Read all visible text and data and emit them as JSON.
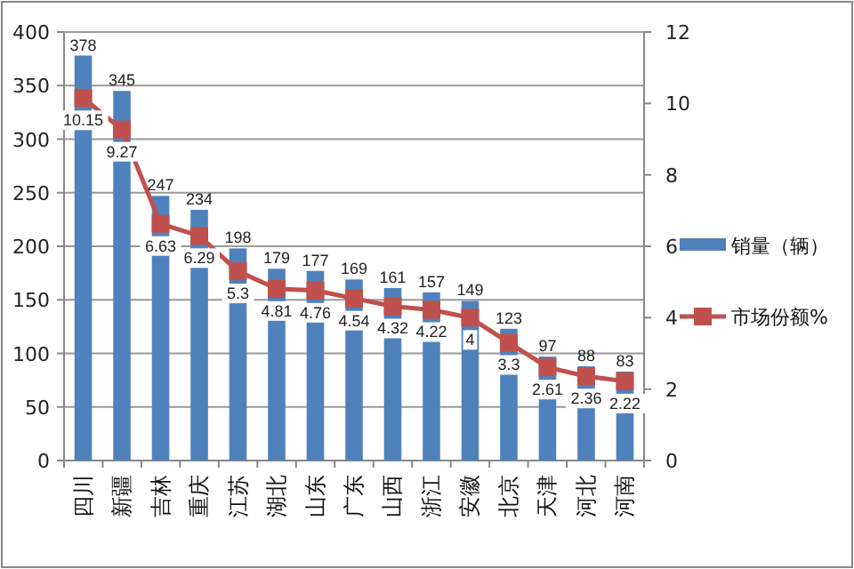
{
  "chart_data": {
    "type": "bar",
    "categories": [
      "四川",
      "新疆",
      "吉林",
      "重庆",
      "江苏",
      "湖北",
      "山东",
      "广东",
      "山西",
      "浙江",
      "安徽",
      "北京",
      "天津",
      "河北",
      "河南"
    ],
    "series": [
      {
        "name": "销量（辆）",
        "color": "#4f81bd",
        "values": [
          378,
          345,
          247,
          234,
          198,
          179,
          177,
          169,
          161,
          157,
          149,
          123,
          97,
          88,
          83
        ]
      },
      {
        "name": "市场份额%",
        "type": "line",
        "axis": "y2",
        "color": "#c0504d",
        "marker": "square",
        "values": [
          10.15,
          9.27,
          6.63,
          6.29,
          5.3,
          4.81,
          4.76,
          4.54,
          4.32,
          4.22,
          4,
          3.3,
          2.61,
          2.36,
          2.22
        ]
      }
    ],
    "ylim": [
      0,
      400
    ],
    "yticks": [
      0,
      50,
      100,
      150,
      200,
      250,
      300,
      350,
      400
    ],
    "y2lim": [
      0,
      12
    ],
    "y2ticks": [
      0,
      2,
      4,
      6,
      8,
      10,
      12
    ],
    "grid": "y",
    "legend": "right",
    "data_labels": true
  }
}
